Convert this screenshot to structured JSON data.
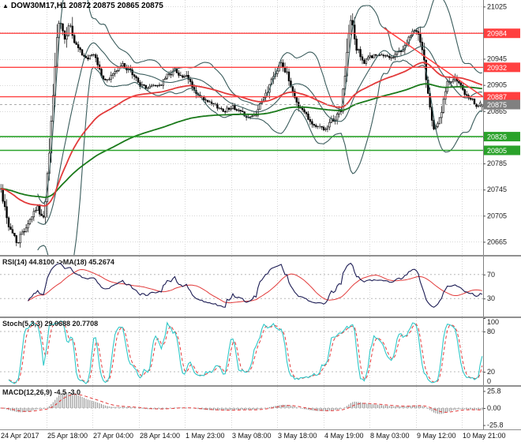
{
  "header": {
    "symbol_timeframe": "DOW30M17,H1",
    "ohlc": "20872 20875 20865 20875"
  },
  "icons": {
    "chart_marker": "▲"
  },
  "price_axis": {
    "ticks": [
      "21025",
      "20985",
      "20945",
      "20905",
      "20865",
      "20825",
      "20785",
      "20745",
      "20705",
      "20665"
    ],
    "level_labels": [
      {
        "text": "20984",
        "type": "resistance"
      },
      {
        "text": "20932",
        "type": "resistance"
      },
      {
        "text": "20887",
        "type": "resistance"
      },
      {
        "text": "20875",
        "type": "current"
      },
      {
        "text": "20826",
        "type": "support"
      },
      {
        "text": "20805",
        "type": "support"
      }
    ]
  },
  "time_axis": {
    "labels": [
      "24 Apr 2017",
      "25 Apr 18:00",
      "27 Apr 04:00",
      "28 Apr 14:00",
      "1 May 23:00",
      "3 May 08:00",
      "3 May 18:00",
      "4 May 19:00",
      "8 May 03:00",
      "9 May 12:00",
      "10 May 21:00"
    ]
  },
  "panels": {
    "rsi": {
      "label": "RSI(14) 44.8100 ->MA(18) 45.2674",
      "axis_labels": [
        "70",
        "30"
      ]
    },
    "stoch": {
      "label": "Stoch(5,3,3) 29.0688 20.7708",
      "axis_labels": [
        "100",
        "80",
        "20",
        "0"
      ]
    },
    "macd": {
      "label": "MACD(12,26,9) -4.5 -3.0",
      "axis_labels": [
        "25.8",
        "0.00",
        "-25.8"
      ]
    }
  },
  "colors": {
    "background": "#ffffff",
    "grid": "#d6d6d6",
    "candle_up_fill": "#ffffff",
    "candle_down_fill": "#000000",
    "candle_outline": "#000000",
    "bollinger": "#3a5c5c",
    "ma_fast": "#e23b3b",
    "ma_slow": "#1b7a1b",
    "resistance": "#ff4040",
    "support": "#2aa22a",
    "current_price": "#808080",
    "trendline": "#ff4040",
    "rsi_line": "#1c1c54",
    "rsi_ma": "#e23b3b",
    "stoch_line": "#2ec8c8",
    "stoch_signal": "#e23b3b",
    "macd_hist": "#8a8a8a",
    "macd_signal": "#e23b3b",
    "axis_text": "#1a1a1a",
    "level_dotted": "#b8b8b8",
    "separator": "#909090"
  },
  "chart_data": {
    "type": "candlestick",
    "title": "DOW30M17,H1",
    "timeframe": "H1",
    "last_ohlc": {
      "open": 20872,
      "high": 20875,
      "low": 20865,
      "close": 20875
    },
    "y_range": [
      20645,
      21035
    ],
    "price_ticks": [
      21025,
      20985,
      20945,
      20905,
      20865,
      20825,
      20785,
      20745,
      20705,
      20665
    ],
    "resistance_levels": [
      20984,
      20932,
      20887
    ],
    "support_levels": [
      20826,
      20805
    ],
    "current_price": 20875,
    "trendline": {
      "x1": 0.795,
      "price1": 20992,
      "x2": 1.0,
      "price2": 20887
    },
    "bars": 250,
    "price_path": [
      [
        0.0,
        20745
      ],
      [
        0.018,
        20690
      ],
      [
        0.035,
        20665
      ],
      [
        0.055,
        20700
      ],
      [
        0.075,
        20722
      ],
      [
        0.09,
        20700
      ],
      [
        0.1,
        20780
      ],
      [
        0.112,
        20930
      ],
      [
        0.122,
        20995
      ],
      [
        0.132,
        20955
      ],
      [
        0.142,
        21005
      ],
      [
        0.152,
        20962
      ],
      [
        0.17,
        20940
      ],
      [
        0.195,
        20950
      ],
      [
        0.215,
        20910
      ],
      [
        0.235,
        20925
      ],
      [
        0.255,
        20935
      ],
      [
        0.275,
        20915
      ],
      [
        0.3,
        20900
      ],
      [
        0.33,
        20905
      ],
      [
        0.36,
        20930
      ],
      [
        0.385,
        20915
      ],
      [
        0.41,
        20885
      ],
      [
        0.435,
        20870
      ],
      [
        0.46,
        20865
      ],
      [
        0.48,
        20875
      ],
      [
        0.505,
        20860
      ],
      [
        0.525,
        20855
      ],
      [
        0.548,
        20880
      ],
      [
        0.565,
        20915
      ],
      [
        0.582,
        20950
      ],
      [
        0.595,
        20920
      ],
      [
        0.615,
        20880
      ],
      [
        0.635,
        20860
      ],
      [
        0.658,
        20842
      ],
      [
        0.678,
        20838
      ],
      [
        0.695,
        20850
      ],
      [
        0.708,
        20870
      ],
      [
        0.718,
        20950
      ],
      [
        0.728,
        21000
      ],
      [
        0.738,
        20960
      ],
      [
        0.755,
        20940
      ],
      [
        0.775,
        20950
      ],
      [
        0.795,
        20945
      ],
      [
        0.815,
        20950
      ],
      [
        0.835,
        20960
      ],
      [
        0.852,
        20980
      ],
      [
        0.865,
        20988
      ],
      [
        0.875,
        20955
      ],
      [
        0.888,
        20895
      ],
      [
        0.9,
        20855
      ],
      [
        0.912,
        20860
      ],
      [
        0.928,
        20900
      ],
      [
        0.942,
        20922
      ],
      [
        0.955,
        20895
      ],
      [
        0.97,
        20880
      ],
      [
        0.985,
        20872
      ],
      [
        1.0,
        20875
      ]
    ],
    "indicators": {
      "bollinger": {
        "period": 20,
        "deviation": 2
      },
      "ma_fast": {
        "period": 60
      },
      "ma_slow": {
        "period": 150
      },
      "rsi": {
        "period": 14,
        "ma_period": 18,
        "value": 44.81,
        "ma_value": 45.2674,
        "levels": [
          70,
          30
        ],
        "range": [
          0,
          100
        ]
      },
      "stoch": {
        "k": 5,
        "d": 3,
        "slowing": 3,
        "value": 29.0688,
        "signal": 20.7708,
        "levels": [
          80,
          20
        ],
        "range": [
          0,
          100
        ]
      },
      "macd": {
        "fast": 12,
        "slow": 26,
        "signal": 9,
        "value": -4.5,
        "signal_value": -3.0,
        "axis_max": 25.8
      }
    }
  }
}
